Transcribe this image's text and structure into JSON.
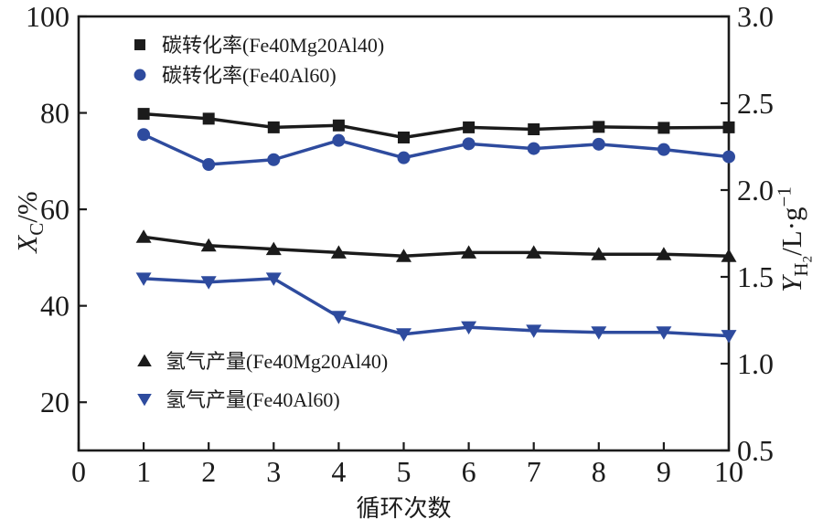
{
  "chart_data": {
    "type": "line",
    "title": "",
    "xlabel": "循环次数",
    "x_range": [
      0,
      10
    ],
    "x_ticks": [
      0,
      1,
      2,
      3,
      4,
      5,
      6,
      7,
      8,
      9,
      10
    ],
    "x": [
      1,
      2,
      3,
      4,
      5,
      6,
      7,
      8,
      9,
      10
    ],
    "grid": false,
    "legend_positions": {
      "top": "upper-left-inside",
      "bottom": "lower-left-inside"
    },
    "left_axis": {
      "label": "XC/%",
      "range": [
        10,
        100
      ],
      "ticks": [
        20,
        40,
        60,
        80,
        100
      ],
      "decimals": 0
    },
    "right_axis": {
      "label": "YH2/L·g−1",
      "range": [
        0.5,
        3.0
      ],
      "ticks": [
        0.5,
        1.0,
        1.5,
        2.0,
        2.5,
        3.0
      ],
      "decimals": 1
    },
    "series": [
      {
        "name": "碳转化率(Fe40Mg20Al40)",
        "axis": "left",
        "marker": "square",
        "color": "#1b1b1b",
        "legend": "top",
        "values": [
          79.8,
          78.8,
          77.0,
          77.4,
          74.9,
          77.0,
          76.6,
          77.1,
          76.9,
          77.0
        ]
      },
      {
        "name": "碳转化率(Fe40Al60)",
        "axis": "left",
        "marker": "circle",
        "color": "#2e4b9e",
        "legend": "top",
        "values": [
          75.5,
          69.3,
          70.3,
          74.3,
          70.7,
          73.6,
          72.6,
          73.5,
          72.4,
          70.9
        ]
      },
      {
        "name": "氢气产量(Fe40Mg20Al40)",
        "axis": "right",
        "marker": "triangle-up",
        "color": "#1b1b1b",
        "legend": "bottom",
        "values": [
          1.73,
          1.68,
          1.66,
          1.64,
          1.62,
          1.64,
          1.64,
          1.63,
          1.63,
          1.62
        ]
      },
      {
        "name": "氢气产量(Fe40Al60)",
        "axis": "right",
        "marker": "triangle-down",
        "color": "#2e4b9e",
        "legend": "bottom",
        "values": [
          1.49,
          1.47,
          1.49,
          1.27,
          1.17,
          1.21,
          1.19,
          1.18,
          1.18,
          1.16
        ]
      }
    ]
  },
  "axis_labels": {
    "left": {
      "var": "X",
      "sub": "C",
      "unit": "/%"
    },
    "right": {
      "var": "Y",
      "sub_main": "H",
      "sub_small": "2",
      "unit": "/L·g",
      "sup": "−1"
    }
  },
  "colors": {
    "black": "#1b1b1b",
    "blue": "#2e4b9e",
    "background": "#ffffff",
    "axis": "#1b1b1b"
  }
}
